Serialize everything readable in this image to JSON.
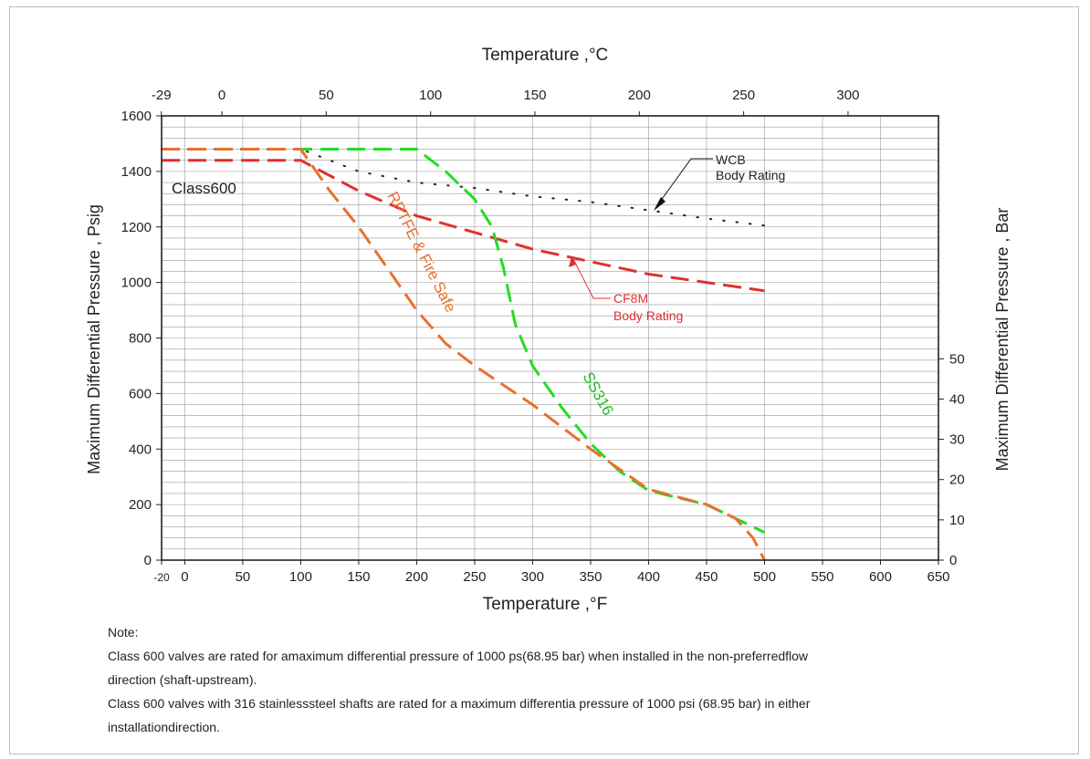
{
  "chart_data": {
    "type": "line",
    "title": "",
    "top_axis_label": "Temperature ,°C",
    "xlabel": "Temperature ,°F",
    "ylabel": "Maximum Differential Pressure , Psig",
    "right_axis_label": "Maximum Differential Pressure , Bar",
    "class_label": "Class600",
    "xlim": [
      -20,
      650
    ],
    "ylim": [
      0,
      1600
    ],
    "x_ticks": [
      "-20",
      "0",
      "50",
      "100",
      "150",
      "200",
      "250",
      "300",
      "350",
      "400",
      "450",
      "500",
      "550",
      "600",
      "650"
    ],
    "y_ticks": [
      "0",
      "200",
      "400",
      "600",
      "800",
      "1000",
      "1200",
      "1400",
      "1600"
    ],
    "top_ticks": [
      "-29",
      "0",
      "50",
      "100",
      "150",
      "200",
      "250",
      "300"
    ],
    "right_ticks": [
      "0",
      "10",
      "20",
      "30",
      "40",
      "50"
    ],
    "grid": true,
    "series": [
      {
        "name": "WCB Body Rating",
        "label_lines": [
          "WCB",
          "Body Rating"
        ],
        "color": "#222222",
        "style": "dotted",
        "x": [
          -20,
          100,
          150,
          200,
          250,
          300,
          350,
          400,
          450,
          500
        ],
        "y": [
          1480,
          1480,
          1400,
          1360,
          1340,
          1310,
          1290,
          1260,
          1230,
          1205
        ]
      },
      {
        "name": "CF8M Body Rating",
        "label_lines": [
          "CF8M",
          "Body Rating"
        ],
        "color": "#e03030",
        "style": "dashed",
        "x": [
          -20,
          100,
          150,
          200,
          250,
          300,
          350,
          400,
          450,
          500
        ],
        "y": [
          1440,
          1440,
          1330,
          1240,
          1180,
          1120,
          1075,
          1030,
          1000,
          970
        ]
      },
      {
        "name": "SS316",
        "label_lines": [
          "SS316"
        ],
        "color": "#22dd22",
        "style": "dashed",
        "x": [
          -20,
          100,
          200,
          225,
          250,
          265,
          275,
          285,
          300,
          325,
          350,
          375,
          400,
          450,
          500
        ],
        "y": [
          1480,
          1480,
          1480,
          1400,
          1300,
          1200,
          1050,
          850,
          700,
          550,
          420,
          320,
          250,
          200,
          100
        ]
      },
      {
        "name": "RPTFE & Fire Safe",
        "label_lines": [
          "RPTFE & Fire Safe"
        ],
        "color": "#e87030",
        "style": "dashed",
        "x": [
          -20,
          100,
          125,
          150,
          175,
          200,
          225,
          250,
          300,
          350,
          400,
          450,
          475,
          490,
          500
        ],
        "y": [
          1480,
          1480,
          1330,
          1200,
          1050,
          900,
          780,
          700,
          560,
          400,
          255,
          200,
          150,
          80,
          0
        ]
      }
    ]
  },
  "notes": {
    "heading": "Note:",
    "line1": "Class 600 valves are rated for amaximum differential pressure of 1000 ps(68.95 bar) when installed in the non-preferredflow",
    "line2": "direction (shaft-upstream).",
    "line3": "Class 600 valves with 316 stainlesssteel shafts are rated for a maximum differentia pressure of 1000 psi (68.95 bar) in either",
    "line4": "installationdirection."
  }
}
